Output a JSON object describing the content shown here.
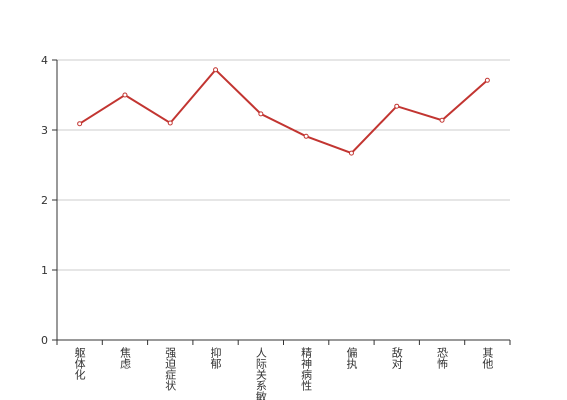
{
  "chart_data": {
    "type": "line",
    "categories": [
      "躯体化",
      "焦虑",
      "强迫症状",
      "抑郁",
      "人际关系敏感",
      "精神病性",
      "偏执",
      "敌对",
      "恐怖",
      "其他"
    ],
    "series": [
      {
        "color": "#c23531",
        "values": [
          3.09,
          3.5,
          3.1,
          3.86,
          3.23,
          2.91,
          2.67,
          3.34,
          3.14,
          3.71
        ]
      }
    ],
    "ylim": [
      0,
      4
    ],
    "yticks": [
      0,
      1,
      2,
      3,
      4
    ],
    "grid": true
  }
}
